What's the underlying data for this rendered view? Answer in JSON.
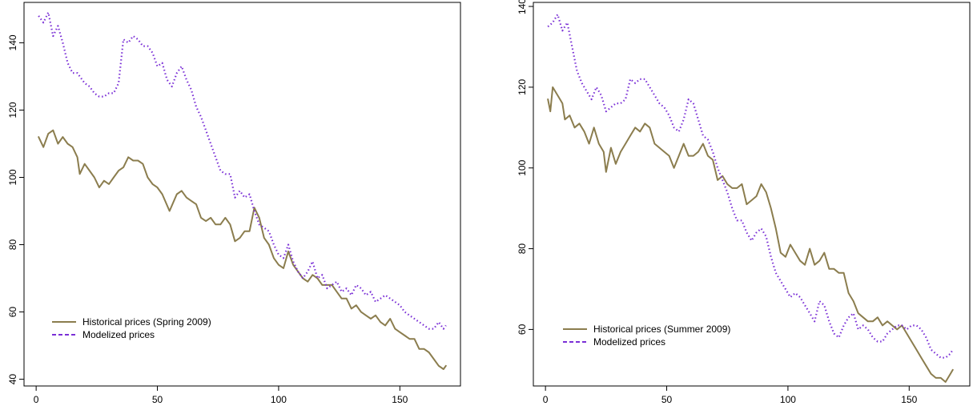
{
  "chart_data": [
    {
      "type": "line",
      "title": "",
      "xlabel": "",
      "ylabel": "",
      "xlim": [
        -5,
        175
      ],
      "ylim": [
        38,
        152
      ],
      "xticks": [
        0,
        50,
        100,
        150
      ],
      "yticks": [
        40,
        60,
        80,
        100,
        120,
        140
      ],
      "legend_position": "bottom-left",
      "series": [
        {
          "name": "Historical prices (Spring 2009)",
          "color": "#8b7d4e",
          "style": "solid",
          "x": [
            1,
            3,
            5,
            7,
            9,
            11,
            13,
            15,
            17,
            18,
            20,
            22,
            24,
            26,
            28,
            30,
            32,
            34,
            36,
            38,
            40,
            42,
            44,
            46,
            48,
            50,
            52,
            55,
            58,
            60,
            62,
            64,
            66,
            68,
            70,
            72,
            74,
            76,
            78,
            80,
            82,
            84,
            86,
            88,
            90,
            92,
            94,
            96,
            98,
            100,
            102,
            104,
            106,
            108,
            110,
            112,
            114,
            116,
            118,
            120,
            122,
            124,
            126,
            128,
            130,
            132,
            134,
            136,
            138,
            140,
            142,
            144,
            146,
            148,
            150,
            152,
            154,
            156,
            158,
            160,
            162,
            164,
            166,
            168,
            169
          ],
          "values": [
            112,
            109,
            113,
            114,
            110,
            112,
            110,
            109,
            106,
            101,
            104,
            102,
            100,
            97,
            99,
            98,
            100,
            102,
            103,
            106,
            105,
            105,
            104,
            100,
            98,
            97,
            95,
            90,
            95,
            96,
            94,
            93,
            92,
            88,
            87,
            88,
            86,
            86,
            88,
            86,
            81,
            82,
            84,
            84,
            91,
            88,
            82,
            80,
            76,
            74,
            73,
            78,
            74,
            72,
            70,
            69,
            71,
            70,
            68,
            68,
            68,
            66,
            64,
            64,
            61,
            62,
            60,
            59,
            58,
            59,
            57,
            56,
            58,
            55,
            54,
            53,
            52,
            52,
            49,
            49,
            48,
            46,
            44,
            43,
            44
          ]
        },
        {
          "name": "Modelized prices",
          "color": "#7a2fd6",
          "style": "dotted",
          "x": [
            1,
            3,
            5,
            7,
            9,
            11,
            13,
            15,
            17,
            20,
            22,
            24,
            26,
            28,
            30,
            32,
            34,
            36,
            38,
            40,
            42,
            44,
            46,
            48,
            50,
            52,
            54,
            56,
            58,
            60,
            62,
            64,
            66,
            68,
            70,
            72,
            74,
            76,
            78,
            80,
            82,
            84,
            86,
            88,
            90,
            92,
            94,
            96,
            98,
            100,
            102,
            104,
            106,
            108,
            110,
            112,
            114,
            116,
            118,
            120,
            122,
            124,
            126,
            128,
            130,
            132,
            134,
            136,
            138,
            140,
            142,
            144,
            146,
            148,
            150,
            152,
            154,
            156,
            158,
            160,
            162,
            164,
            166,
            168,
            169
          ],
          "values": [
            148,
            146,
            149,
            142,
            145,
            140,
            134,
            131,
            131,
            128,
            127,
            125,
            124,
            124,
            125,
            125,
            128,
            141,
            140,
            142,
            141,
            139,
            139,
            137,
            133,
            134,
            129,
            127,
            131,
            133,
            129,
            126,
            121,
            118,
            114,
            110,
            106,
            102,
            101,
            101,
            94,
            96,
            94,
            95,
            90,
            86,
            85,
            84,
            80,
            77,
            76,
            80,
            75,
            72,
            70,
            72,
            75,
            70,
            71,
            67,
            68,
            69,
            66,
            67,
            65,
            68,
            67,
            65,
            66,
            63,
            64,
            65,
            64,
            63,
            62,
            60,
            59,
            58,
            57,
            56,
            55,
            55,
            57,
            55,
            56
          ]
        }
      ]
    },
    {
      "type": "line",
      "title": "",
      "xlabel": "",
      "ylabel": "",
      "xlim": [
        -5,
        175
      ],
      "ylim": [
        46,
        141
      ],
      "xticks": [
        0,
        50,
        100,
        150
      ],
      "yticks": [
        60,
        80,
        100,
        120,
        140
      ],
      "legend_position": "bottom-left",
      "series": [
        {
          "name": "Historical prices (Summer 2009)",
          "color": "#8b7d4e",
          "style": "solid",
          "x": [
            1,
            2,
            3,
            5,
            7,
            8,
            10,
            12,
            14,
            16,
            18,
            20,
            22,
            24,
            25,
            27,
            29,
            31,
            33,
            35,
            37,
            39,
            41,
            43,
            45,
            47,
            49,
            51,
            53,
            55,
            57,
            59,
            61,
            63,
            65,
            67,
            69,
            71,
            73,
            75,
            77,
            79,
            81,
            83,
            85,
            87,
            89,
            91,
            93,
            95,
            97,
            99,
            101,
            103,
            105,
            107,
            109,
            111,
            113,
            115,
            117,
            119,
            121,
            123,
            125,
            127,
            129,
            131,
            133,
            135,
            137,
            139,
            141,
            143,
            145,
            147,
            149,
            151,
            153,
            155,
            157,
            159,
            161,
            163,
            165,
            167,
            168
          ],
          "values": [
            117,
            114,
            120,
            118,
            116,
            112,
            113,
            110,
            111,
            109,
            106,
            110,
            106,
            104,
            99,
            105,
            101,
            104,
            106,
            108,
            110,
            109,
            111,
            110,
            106,
            105,
            104,
            103,
            100,
            103,
            106,
            103,
            103,
            104,
            106,
            103,
            102,
            97,
            98,
            96,
            95,
            95,
            96,
            91,
            92,
            93,
            96,
            94,
            90,
            85,
            79,
            78,
            81,
            79,
            77,
            76,
            80,
            76,
            77,
            79,
            75,
            75,
            74,
            74,
            69,
            67,
            64,
            63,
            62,
            62,
            63,
            61,
            62,
            61,
            60,
            61,
            59,
            57,
            55,
            53,
            51,
            49,
            48,
            48,
            47,
            49,
            50
          ]
        },
        {
          "name": "Modelized prices",
          "color": "#7a2fd6",
          "style": "dotted",
          "x": [
            1,
            3,
            5,
            7,
            9,
            11,
            13,
            15,
            17,
            19,
            21,
            23,
            25,
            27,
            29,
            31,
            33,
            35,
            37,
            39,
            41,
            43,
            45,
            47,
            49,
            51,
            53,
            55,
            57,
            59,
            61,
            63,
            65,
            67,
            69,
            71,
            73,
            75,
            77,
            79,
            81,
            83,
            85,
            87,
            89,
            91,
            93,
            95,
            97,
            99,
            101,
            103,
            105,
            107,
            109,
            111,
            113,
            115,
            117,
            119,
            121,
            123,
            125,
            127,
            129,
            131,
            133,
            135,
            137,
            139,
            141,
            143,
            145,
            147,
            149,
            151,
            153,
            155,
            157,
            159,
            161,
            163,
            165,
            167,
            168
          ],
          "values": [
            135,
            136,
            138,
            134,
            136,
            130,
            124,
            121,
            119,
            117,
            120,
            118,
            114,
            115,
            116,
            116,
            117,
            122,
            121,
            122,
            122,
            120,
            118,
            116,
            115,
            113,
            110,
            109,
            112,
            117,
            116,
            112,
            108,
            107,
            104,
            100,
            97,
            94,
            90,
            87,
            87,
            84,
            82,
            84,
            85,
            83,
            78,
            74,
            72,
            70,
            68,
            69,
            68,
            66,
            64,
            62,
            67,
            66,
            62,
            59,
            58,
            61,
            63,
            64,
            60,
            61,
            60,
            58,
            57,
            57,
            59,
            60,
            61,
            61,
            60,
            61,
            61,
            60,
            58,
            55,
            54,
            53,
            53,
            54,
            55
          ]
        }
      ]
    }
  ]
}
